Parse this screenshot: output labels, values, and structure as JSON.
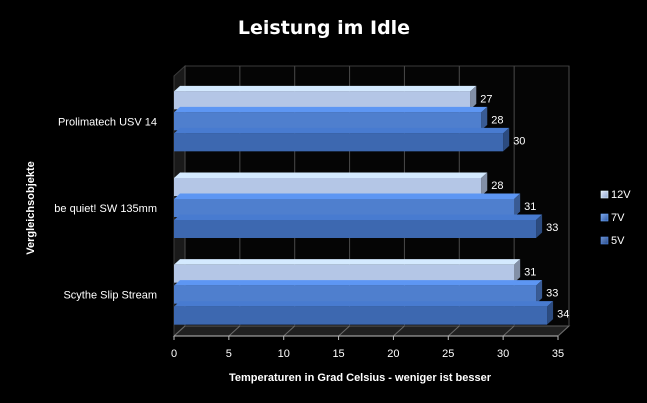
{
  "chart_data": {
    "type": "bar",
    "orientation": "horizontal",
    "title": "Leistung im Idle",
    "xlabel": "Temperaturen in Grad Celsius - weniger ist besser",
    "ylabel": "Vergleichsobjekte",
    "xlim": [
      0,
      35
    ],
    "xticks": [
      "0",
      "5",
      "10",
      "15",
      "20",
      "25",
      "30",
      "35"
    ],
    "categories": [
      "Prolimatech USV 14",
      "be quiet! SW 135mm",
      "Scythe Slip Stream"
    ],
    "series": [
      {
        "name": "12V",
        "values": [
          27,
          28,
          31
        ],
        "color": "#b4c6e6"
      },
      {
        "name": "7V",
        "values": [
          28,
          31,
          33
        ],
        "color": "#4f7fce"
      },
      {
        "name": "5V",
        "values": [
          30,
          33,
          34
        ],
        "color": "#3d68b0"
      }
    ],
    "legend_position": "right",
    "grid": true,
    "background": "#000000"
  }
}
